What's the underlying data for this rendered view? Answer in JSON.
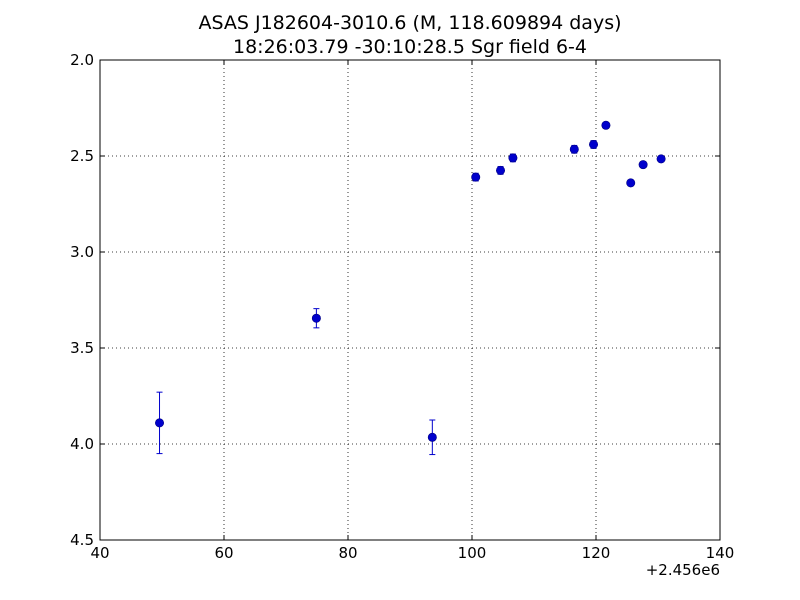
{
  "chart_data": {
    "type": "scatter",
    "title": "ASAS J182604-3010.6 (M, 118.609894 days)",
    "subtitle": "18:26:03.79 -30:10:28.5 Sgr field 6-4",
    "xlabel": "",
    "ylabel": "",
    "x_offset_label": "+2.456e6",
    "xlim": [
      40,
      140
    ],
    "ylim": [
      4.5,
      2.0
    ],
    "y_inverted": true,
    "grid": true,
    "grid_style": "dotted",
    "xticks": [
      40,
      60,
      80,
      100,
      120,
      140
    ],
    "xtick_labels": [
      "40",
      "60",
      "80",
      "100",
      "120",
      "140"
    ],
    "yticks": [
      2.0,
      2.5,
      3.0,
      3.5,
      4.0,
      4.5
    ],
    "ytick_labels": [
      "2.0",
      "2.5",
      "3.0",
      "3.5",
      "4.0",
      "4.5"
    ],
    "marker_color": "#0000cc",
    "errorbar_color": "#0000cc",
    "series": [
      {
        "x": [
          49.6,
          74.9,
          93.6,
          100.6,
          104.6,
          106.6,
          116.5,
          119.6,
          121.6,
          125.6,
          127.6,
          130.5
        ],
        "y": [
          3.89,
          3.345,
          3.965,
          2.61,
          2.575,
          2.51,
          2.465,
          2.44,
          2.34,
          2.64,
          2.545,
          2.515
        ],
        "yerr": [
          0.16,
          0.05,
          0.09,
          0.02,
          0.02,
          0.02,
          0.02,
          0.02,
          0.015,
          0.015,
          0.015,
          0.015
        ]
      }
    ]
  }
}
